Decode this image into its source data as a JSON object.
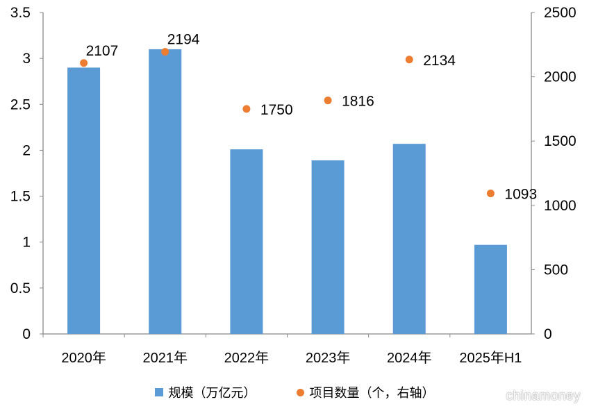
{
  "chart_data": {
    "type": "bar+scatter",
    "categories": [
      "2020年",
      "2021年",
      "2022年",
      "2023年",
      "2024年",
      "2025年H1"
    ],
    "series": [
      {
        "name": "规模（万亿元）",
        "type": "bar",
        "axis": "left",
        "color": "#5b9bd5",
        "values": [
          2.9,
          3.1,
          2.01,
          1.89,
          2.07,
          0.97
        ]
      },
      {
        "name": "项目数量（个，右轴）",
        "type": "scatter",
        "axis": "right",
        "color": "#ed7d31",
        "values": [
          2107,
          2194,
          1750,
          1816,
          2134,
          1093
        ],
        "labels": [
          "2107",
          "2194",
          "1750",
          "1816",
          "2134",
          "1093"
        ]
      }
    ],
    "left_axis": {
      "ylim": [
        0,
        3.5
      ],
      "ticks": [
        "0",
        "0.5",
        "1",
        "1.5",
        "2",
        "2.5",
        "3",
        "3.5"
      ]
    },
    "right_axis": {
      "ylim": [
        0,
        2500
      ],
      "ticks": [
        "0",
        "500",
        "1000",
        "1500",
        "2000",
        "2500"
      ]
    },
    "grid": false,
    "legend_position": "bottom"
  },
  "watermark": "chinamoney"
}
